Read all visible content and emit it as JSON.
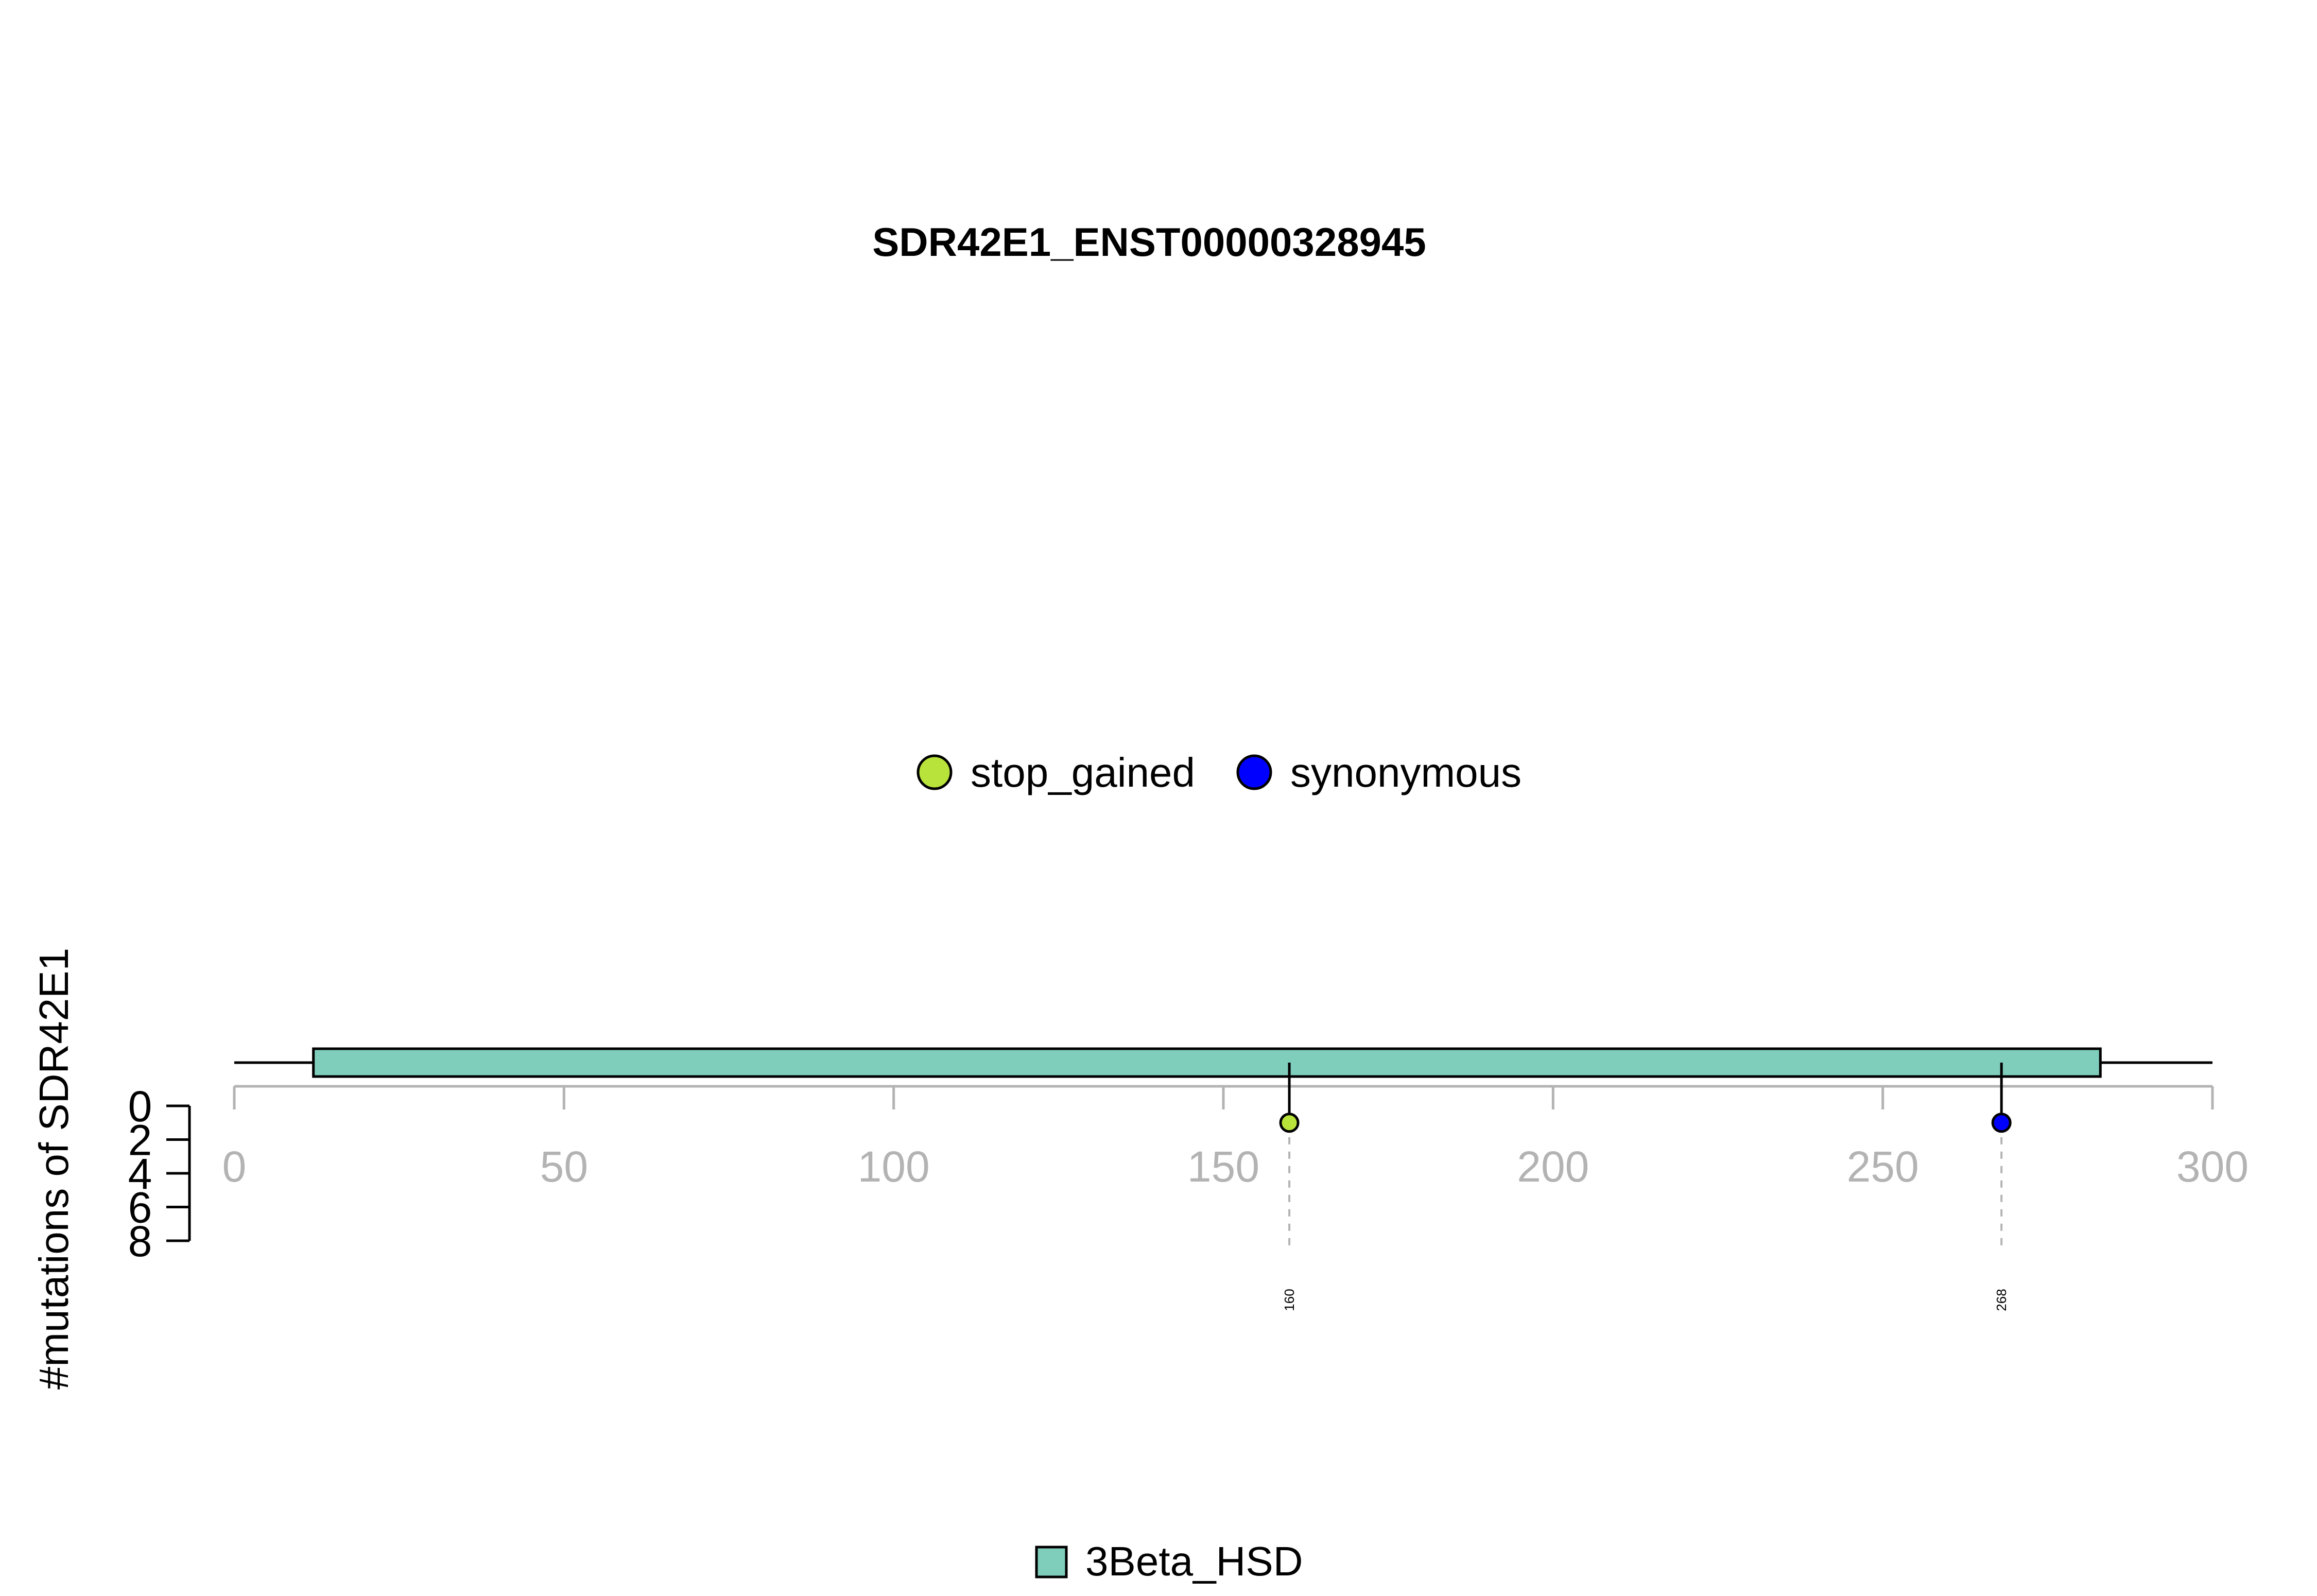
{
  "chart_data": {
    "type": "lollipop",
    "title": "SDR42E1_ENST00000328945",
    "ylabel": "#mutations of SDR42E1",
    "xlim": [
      0,
      300
    ],
    "x_ticks": [
      0,
      50,
      100,
      150,
      200,
      250,
      300
    ],
    "y_ticks": [
      0,
      2,
      4,
      6,
      8
    ],
    "ylim": [
      0,
      8
    ],
    "protein_length": 300,
    "domains": [
      {
        "name": "3Beta_HSD",
        "start": 12,
        "end": 283,
        "color": "#7fcdbb"
      }
    ],
    "mutation_legend": [
      {
        "name": "stop_gained",
        "color": "#b8e33a"
      },
      {
        "name": "synonymous",
        "color": "#0000ff"
      }
    ],
    "mutations": [
      {
        "position": 160,
        "count": 1,
        "type": "stop_gained",
        "label": "160",
        "color": "#b8e33a"
      },
      {
        "position": 268,
        "count": 1,
        "type": "synonymous",
        "label": "268",
        "color": "#0000ff"
      }
    ],
    "domain_legend": [
      {
        "name": "3Beta_HSD",
        "color": "#7fcdbb"
      }
    ]
  }
}
